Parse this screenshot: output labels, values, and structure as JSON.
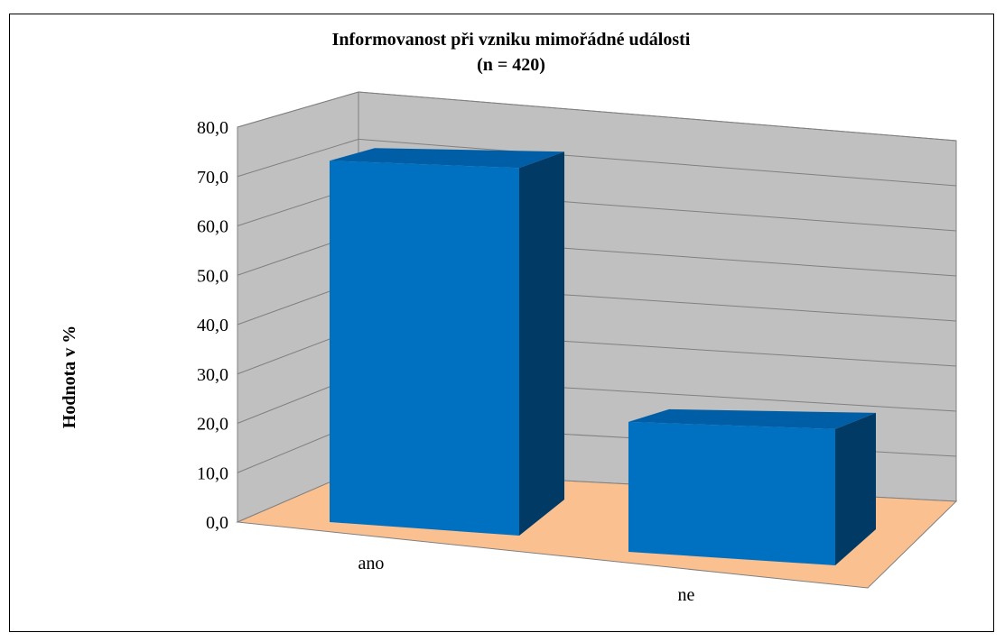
{
  "chart_data": {
    "type": "bar",
    "title": "Informovanost při vzniku mimořádné události",
    "subtitle": "(n = 420)",
    "ylabel": "Hodnota v %",
    "xlabel": "",
    "categories": [
      "ano",
      "ne"
    ],
    "values": [
      73.8,
      26.2
    ],
    "ylim": [
      0,
      80
    ],
    "yticks": [
      "0,0",
      "10,0",
      "20,0",
      "30,0",
      "40,0",
      "50,0",
      "60,0",
      "70,0",
      "80,0"
    ],
    "grid": true,
    "legend": "none",
    "colors": {
      "bar_front": "#0070C0",
      "bar_top": "#005EA6",
      "bar_side": "#003A65",
      "back_wall": "#C0C0C0",
      "side_wall": "#C0C0C0",
      "floor": "#FAC090",
      "gridline": "#808080"
    }
  }
}
